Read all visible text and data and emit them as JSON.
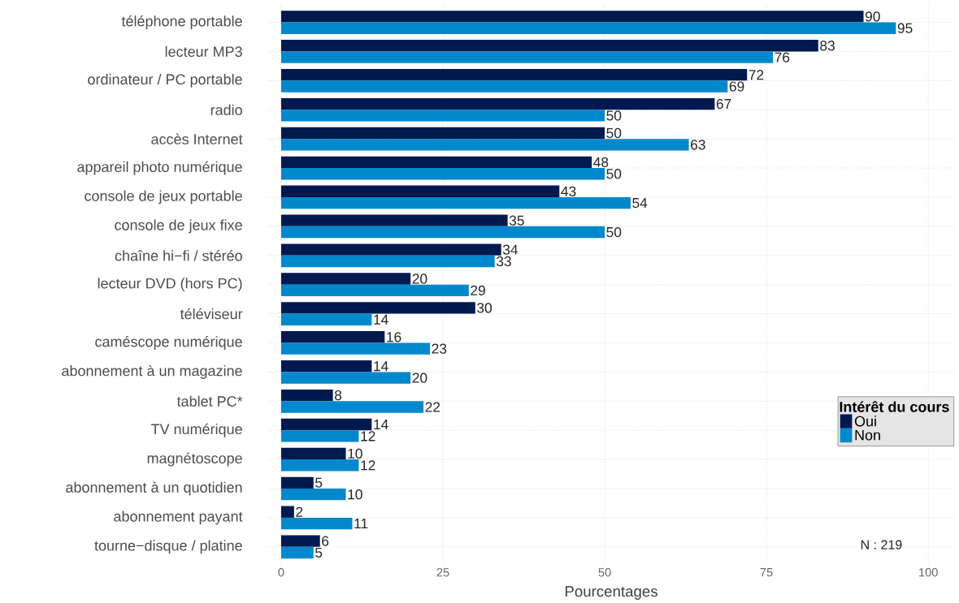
{
  "chart_data": {
    "type": "bar",
    "orientation": "horizontal",
    "xlabel": "Pourcentages",
    "legend_title": "Intérêt du cours",
    "categories": [
      "téléphone portable",
      "lecteur MP3",
      "ordinateur / PC portable",
      "radio",
      "accès Internet",
      "appareil photo numérique",
      "console de jeux portable",
      "console de jeux fixe",
      "chaîne hi−fi / stéréo",
      "lecteur DVD (hors PC)",
      "téléviseur",
      "caméscope numérique",
      "abonnement à un magazine",
      "tablet PC*",
      "TV numérique",
      "magnétoscope",
      "abonnement à un quotidien",
      "abonnement payant",
      "tourne−disque / platine"
    ],
    "series": [
      {
        "name": "Oui",
        "color": "#001a4f",
        "values": [
          90,
          83,
          72,
          67,
          50,
          48,
          43,
          35,
          34,
          20,
          30,
          16,
          14,
          8,
          14,
          10,
          5,
          2,
          6
        ]
      },
      {
        "name": "Non",
        "color": "#0088cc",
        "values": [
          95,
          76,
          69,
          50,
          63,
          50,
          54,
          50,
          33,
          29,
          14,
          23,
          20,
          22,
          12,
          12,
          10,
          11,
          5
        ]
      }
    ],
    "xlim": [
      -2,
      104
    ],
    "xticks": [
      0,
      25,
      50,
      75,
      100
    ],
    "grid": true,
    "legend": "right",
    "data_labels": true,
    "annotations": [
      "N : 219"
    ]
  }
}
